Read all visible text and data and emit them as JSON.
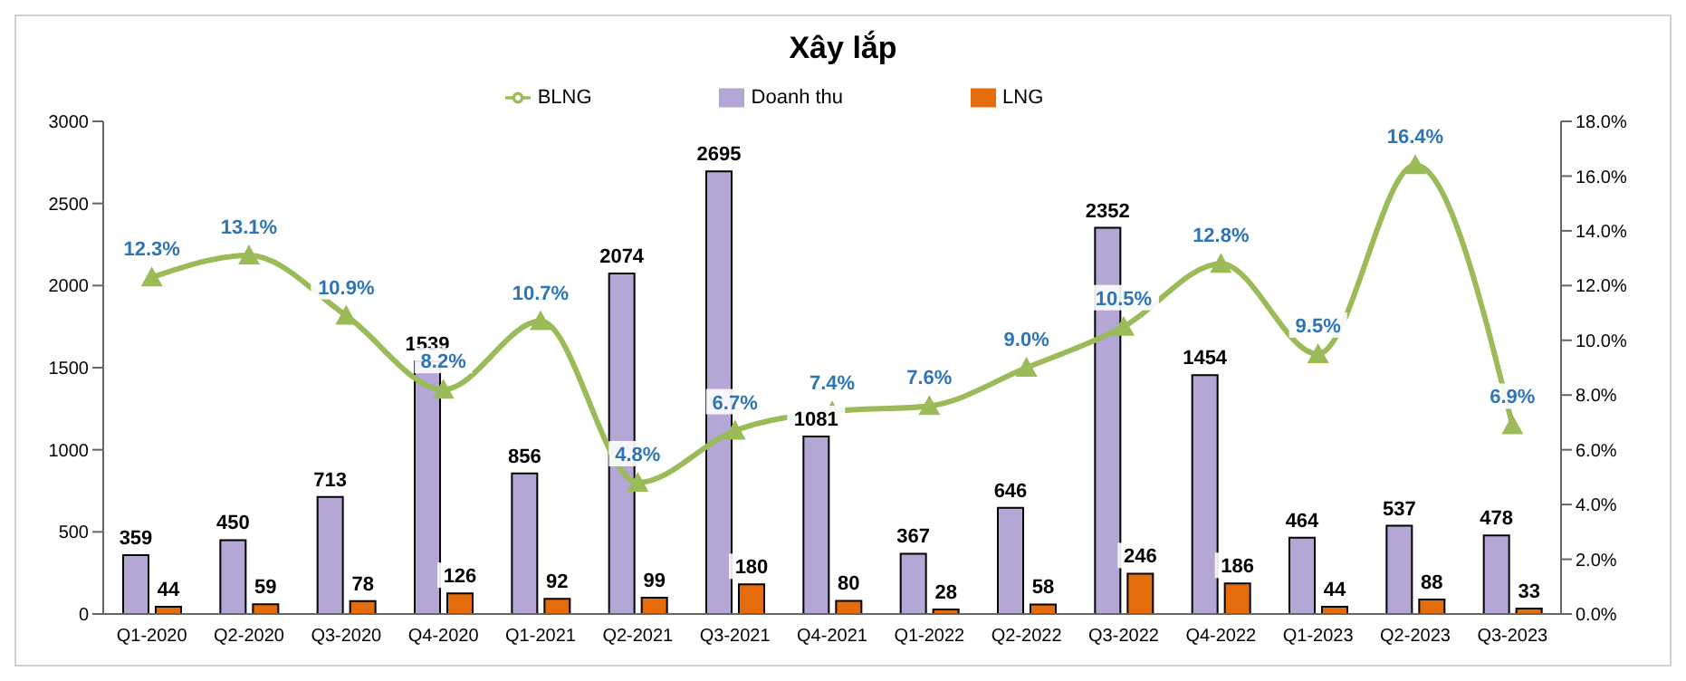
{
  "chart_data": {
    "type": "bar",
    "title": "Xây lắp",
    "categories": [
      "Q1-2020",
      "Q2-2020",
      "Q3-2020",
      "Q4-2020",
      "Q1-2021",
      "Q2-2021",
      "Q3-2021",
      "Q4-2021",
      "Q1-2022",
      "Q2-2022",
      "Q3-2022",
      "Q4-2022",
      "Q1-2023",
      "Q2-2023",
      "Q3-2023"
    ],
    "series": [
      {
        "name": "Doanh thu",
        "color": "#b4a7d6",
        "values": [
          359,
          450,
          713,
          1539,
          856,
          2074,
          2695,
          1081,
          367,
          646,
          2352,
          1454,
          464,
          537,
          478
        ]
      },
      {
        "name": "LNG",
        "color": "#e46c0a",
        "values": [
          44,
          59,
          78,
          126,
          92,
          99,
          180,
          80,
          28,
          58,
          246,
          186,
          44,
          88,
          33
        ]
      },
      {
        "name": "BLNG",
        "type": "line",
        "axis": "y2",
        "color": "#9bbb59",
        "marker": "triangle",
        "values": [
          12.3,
          13.1,
          10.9,
          8.2,
          10.7,
          4.8,
          6.7,
          7.4,
          7.6,
          9.0,
          10.5,
          12.8,
          9.5,
          16.4,
          6.9
        ],
        "value_labels": [
          "12.3%",
          "13.1%",
          "10.9%",
          "8.2%",
          "10.7%",
          "4.8%",
          "6.7%",
          "7.4%",
          "7.6%",
          "9.0%",
          "10.5%",
          "12.8%",
          "9.5%",
          "16.4%",
          "6.9%"
        ]
      }
    ],
    "ylim": [
      0,
      3000
    ],
    "yticks": [
      0,
      500,
      1000,
      1500,
      2000,
      2500,
      3000
    ],
    "y2lim": [
      0,
      18
    ],
    "y2ticks": [
      {
        "value": 0,
        "label": "0.0%"
      },
      {
        "value": 2,
        "label": "2.0%"
      },
      {
        "value": 4,
        "label": "4.0%"
      },
      {
        "value": 6,
        "label": "6.0%"
      },
      {
        "value": 8,
        "label": "8.0%"
      },
      {
        "value": 10,
        "label": "10.0%"
      },
      {
        "value": 12,
        "label": "12.0%"
      },
      {
        "value": 14,
        "label": "14.0%"
      },
      {
        "value": 16,
        "label": "16.0%"
      },
      {
        "value": 18,
        "label": "18.0%"
      }
    ],
    "data_labels": true,
    "grid": false,
    "legend": "top"
  }
}
